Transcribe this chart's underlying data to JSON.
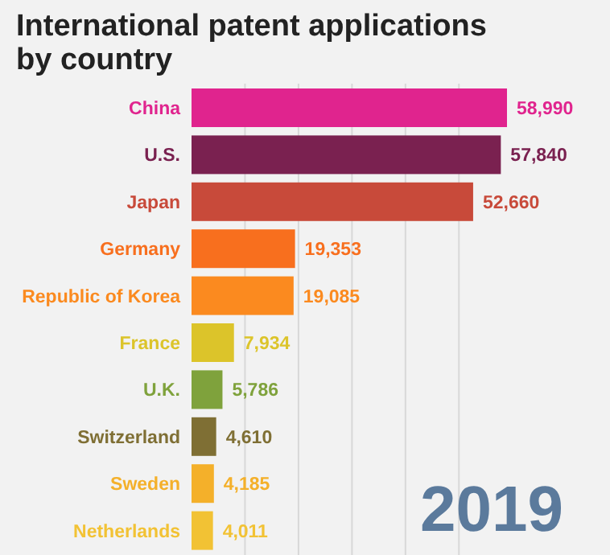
{
  "chart_data": {
    "type": "bar",
    "orientation": "horizontal",
    "title": "International patent applications by country",
    "categories": [
      "China",
      "U.S.",
      "Japan",
      "Germany",
      "Republic of Korea",
      "France",
      "U.K.",
      "Switzerland",
      "Sweden",
      "Netherlands"
    ],
    "values": [
      58990,
      57840,
      52660,
      19353,
      19085,
      7934,
      5786,
      4610,
      4185,
      4011
    ],
    "colors": [
      "#e0248e",
      "#7a2150",
      "#c84a3a",
      "#f86f1e",
      "#fb8a1f",
      "#dcc42a",
      "#7fa23c",
      "#7f6f34",
      "#f4b02a",
      "#f2c234"
    ],
    "value_labels": [
      "58,990",
      "57,840",
      "52,660",
      "19,353",
      "19,085",
      "7,934",
      "5,786",
      "4,610",
      "4,185",
      "4,011"
    ],
    "grid": "x",
    "annotations": [
      "2019"
    ]
  }
}
